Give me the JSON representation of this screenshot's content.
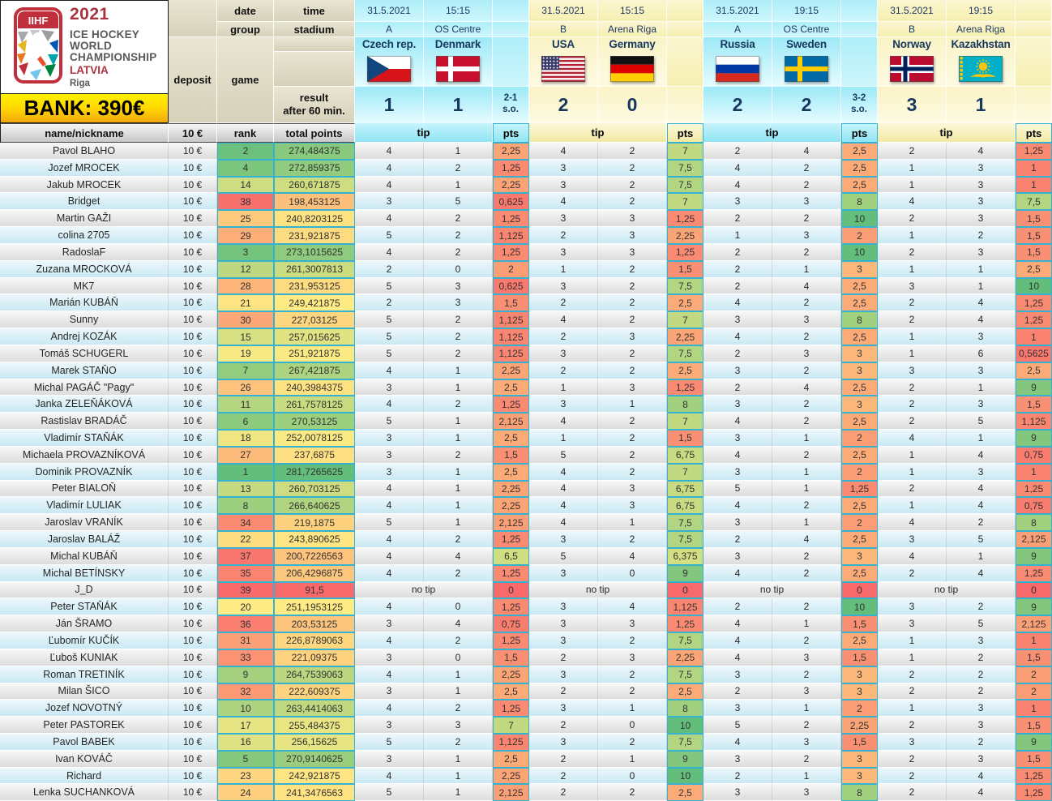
{
  "logo": {
    "org": "IIHF",
    "year": "2021",
    "title1": "ICE HOCKEY",
    "title2": "WORLD",
    "title3": "CHAMPIONSHIP",
    "country": "LATVIA",
    "city": "Riga"
  },
  "bank": {
    "label": "BANK: 390€"
  },
  "headers": {
    "date": "date",
    "time": "time",
    "group": "group",
    "stadium": "stadium",
    "deposit": "deposit",
    "game": "game",
    "result_line1": "result",
    "result_line2": "after 60 min.",
    "name": "name/nickname",
    "fee": "10 €",
    "rank": "rank",
    "total_points": "total points",
    "tip": "tip",
    "pts": "pts"
  },
  "labels": {
    "no_tip": "no tip"
  },
  "colors": {
    "scale_bad": "#f8696b",
    "scale_mid": "#ffeb84",
    "scale_good": "#63be7b",
    "scale_border": "#35b1d2",
    "group_a_accent": "#9de9f7",
    "group_b_accent": "#faf4c6",
    "bank_yellow": "#ffd800"
  },
  "matches": [
    {
      "date": "31.5.2021",
      "time": "15:15",
      "group": "A",
      "stadium": "OS Centre",
      "home": "Czech rep.",
      "away": "Denmark",
      "home_flag": "cz",
      "away_flag": "dk",
      "score_home": "1",
      "score_away": "1",
      "so_score": "2-1",
      "so_label": "s.o.",
      "theme": "A"
    },
    {
      "date": "31.5.2021",
      "time": "15:15",
      "group": "B",
      "stadium": "Arena Riga",
      "home": "USA",
      "away": "Germany",
      "home_flag": "us",
      "away_flag": "de",
      "score_home": "2",
      "score_away": "0",
      "theme": "B"
    },
    {
      "date": "31.5.2021",
      "time": "19:15",
      "group": "A",
      "stadium": "OS Centre",
      "home": "Russia",
      "away": "Sweden",
      "home_flag": "ru",
      "away_flag": "se",
      "score_home": "2",
      "score_away": "2",
      "so_score": "3-2",
      "so_label": "s.o.",
      "theme": "A"
    },
    {
      "date": "31.5.2021",
      "time": "19:15",
      "group": "B",
      "stadium": "Arena Riga",
      "home": "Norway",
      "away": "Kazakhstan",
      "home_flag": "no",
      "away_flag": "kz",
      "score_home": "3",
      "score_away": "1",
      "theme": "B"
    }
  ],
  "players": [
    {
      "name": "Pavol BLAHO",
      "deposit": "10 €",
      "rank": 2,
      "total": "274,484375",
      "tips": [
        [
          "4",
          "1"
        ],
        [
          "4",
          "2"
        ],
        [
          "2",
          "4"
        ],
        [
          "2",
          "4"
        ]
      ],
      "pts": [
        "2,25",
        "7",
        "2,5",
        "1,25"
      ]
    },
    {
      "name": "Jozef MROCEK",
      "deposit": "10 €",
      "rank": 4,
      "total": "272,859375",
      "tips": [
        [
          "4",
          "2"
        ],
        [
          "3",
          "2"
        ],
        [
          "4",
          "2"
        ],
        [
          "1",
          "3"
        ]
      ],
      "pts": [
        "1,25",
        "7,5",
        "2,5",
        "1"
      ]
    },
    {
      "name": "Jakub MROCEK",
      "deposit": "10 €",
      "rank": 14,
      "total": "260,671875",
      "tips": [
        [
          "4",
          "1"
        ],
        [
          "3",
          "2"
        ],
        [
          "4",
          "2"
        ],
        [
          "1",
          "3"
        ]
      ],
      "pts": [
        "2,25",
        "7,5",
        "2,5",
        "1"
      ]
    },
    {
      "name": "Bridget",
      "deposit": "10 €",
      "rank": 38,
      "total": "198,453125",
      "tips": [
        [
          "3",
          "5"
        ],
        [
          "4",
          "2"
        ],
        [
          "3",
          "3"
        ],
        [
          "4",
          "3"
        ]
      ],
      "pts": [
        "0,625",
        "7",
        "8",
        "7,5"
      ]
    },
    {
      "name": "Martin GAŽI",
      "deposit": "10 €",
      "rank": 25,
      "total": "240,8203125",
      "tips": [
        [
          "4",
          "2"
        ],
        [
          "3",
          "3"
        ],
        [
          "2",
          "2"
        ],
        [
          "2",
          "3"
        ]
      ],
      "pts": [
        "1,25",
        "1,25",
        "10",
        "1,5"
      ]
    },
    {
      "name": "colina 2705",
      "deposit": "10 €",
      "rank": 29,
      "total": "231,921875",
      "tips": [
        [
          "5",
          "2"
        ],
        [
          "2",
          "3"
        ],
        [
          "1",
          "3"
        ],
        [
          "1",
          "2"
        ]
      ],
      "pts": [
        "1,125",
        "2,25",
        "2",
        "1,5"
      ]
    },
    {
      "name": "RadoslaF",
      "deposit": "10 €",
      "rank": 3,
      "total": "273,1015625",
      "tips": [
        [
          "4",
          "2"
        ],
        [
          "3",
          "3"
        ],
        [
          "2",
          "2"
        ],
        [
          "2",
          "3"
        ]
      ],
      "pts": [
        "1,25",
        "1,25",
        "10",
        "1,5"
      ]
    },
    {
      "name": "Zuzana MROCKOVÁ",
      "deposit": "10 €",
      "rank": 12,
      "total": "261,3007813",
      "tips": [
        [
          "2",
          "0"
        ],
        [
          "1",
          "2"
        ],
        [
          "2",
          "1"
        ],
        [
          "1",
          "1"
        ]
      ],
      "pts": [
        "2",
        "1,5",
        "3",
        "2,5"
      ]
    },
    {
      "name": "MK7",
      "deposit": "10 €",
      "rank": 28,
      "total": "231,953125",
      "tips": [
        [
          "5",
          "3"
        ],
        [
          "3",
          "2"
        ],
        [
          "2",
          "4"
        ],
        [
          "3",
          "1"
        ]
      ],
      "pts": [
        "0,625",
        "7,5",
        "2,5",
        "10"
      ]
    },
    {
      "name": "Marián KUBÁŇ",
      "deposit": "10 €",
      "rank": 21,
      "total": "249,421875",
      "tips": [
        [
          "2",
          "3"
        ],
        [
          "2",
          "2"
        ],
        [
          "4",
          "2"
        ],
        [
          "2",
          "4"
        ]
      ],
      "pts": [
        "1,5",
        "2,5",
        "2,5",
        "1,25"
      ]
    },
    {
      "name": "Sunny",
      "deposit": "10 €",
      "rank": 30,
      "total": "227,03125",
      "tips": [
        [
          "5",
          "2"
        ],
        [
          "4",
          "2"
        ],
        [
          "3",
          "3"
        ],
        [
          "2",
          "4"
        ]
      ],
      "pts": [
        "1,125",
        "7",
        "8",
        "1,25"
      ]
    },
    {
      "name": "Andrej KOZÁK",
      "deposit": "10 €",
      "rank": 15,
      "total": "257,015625",
      "tips": [
        [
          "5",
          "2"
        ],
        [
          "2",
          "3"
        ],
        [
          "4",
          "2"
        ],
        [
          "1",
          "3"
        ]
      ],
      "pts": [
        "1,125",
        "2,25",
        "2,5",
        "1"
      ]
    },
    {
      "name": "Tomáš SCHUGERL",
      "deposit": "10 €",
      "rank": 19,
      "total": "251,921875",
      "tips": [
        [
          "5",
          "2"
        ],
        [
          "3",
          "2"
        ],
        [
          "2",
          "3"
        ],
        [
          "1",
          "6"
        ]
      ],
      "pts": [
        "1,125",
        "7,5",
        "3",
        "0,5625"
      ]
    },
    {
      "name": "Marek STAŇO",
      "deposit": "10 €",
      "rank": 7,
      "total": "267,421875",
      "tips": [
        [
          "4",
          "1"
        ],
        [
          "2",
          "2"
        ],
        [
          "3",
          "2"
        ],
        [
          "3",
          "3"
        ]
      ],
      "pts": [
        "2,25",
        "2,5",
        "3",
        "2,5"
      ]
    },
    {
      "name": "Michal PAGÁČ \"Pagy\"",
      "deposit": "10 €",
      "rank": 26,
      "total": "240,3984375",
      "tips": [
        [
          "3",
          "1"
        ],
        [
          "1",
          "3"
        ],
        [
          "2",
          "4"
        ],
        [
          "2",
          "1"
        ]
      ],
      "pts": [
        "2,5",
        "1,25",
        "2,5",
        "9"
      ]
    },
    {
      "name": "Janka ZELEŇÁKOVÁ",
      "deposit": "10 €",
      "rank": 11,
      "total": "261,7578125",
      "tips": [
        [
          "4",
          "2"
        ],
        [
          "3",
          "1"
        ],
        [
          "3",
          "2"
        ],
        [
          "2",
          "3"
        ]
      ],
      "pts": [
        "1,25",
        "8",
        "3",
        "1,5"
      ]
    },
    {
      "name": "Rastislav BRADÁČ",
      "deposit": "10 €",
      "rank": 6,
      "total": "270,53125",
      "tips": [
        [
          "5",
          "1"
        ],
        [
          "4",
          "2"
        ],
        [
          "4",
          "2"
        ],
        [
          "2",
          "5"
        ]
      ],
      "pts": [
        "2,125",
        "7",
        "2,5",
        "1,125"
      ]
    },
    {
      "name": "Vladimír STAŇÁK",
      "deposit": "10 €",
      "rank": 18,
      "total": "252,0078125",
      "tips": [
        [
          "3",
          "1"
        ],
        [
          "1",
          "2"
        ],
        [
          "3",
          "1"
        ],
        [
          "4",
          "1"
        ]
      ],
      "pts": [
        "2,5",
        "1,5",
        "2",
        "9"
      ]
    },
    {
      "name": "Michaela PROVAZNÍKOVÁ",
      "deposit": "10 €",
      "rank": 27,
      "total": "237,6875",
      "tips": [
        [
          "3",
          "2"
        ],
        [
          "5",
          "2"
        ],
        [
          "4",
          "2"
        ],
        [
          "1",
          "4"
        ]
      ],
      "pts": [
        "1,5",
        "6,75",
        "2,5",
        "0,75"
      ]
    },
    {
      "name": "Dominik PROVAZNÍK",
      "deposit": "10 €",
      "rank": 1,
      "total": "281,7265625",
      "tips": [
        [
          "3",
          "1"
        ],
        [
          "4",
          "2"
        ],
        [
          "3",
          "1"
        ],
        [
          "1",
          "3"
        ]
      ],
      "pts": [
        "2,5",
        "7",
        "2",
        "1"
      ]
    },
    {
      "name": "Peter BIALOŇ",
      "deposit": "10 €",
      "rank": 13,
      "total": "260,703125",
      "tips": [
        [
          "4",
          "1"
        ],
        [
          "4",
          "3"
        ],
        [
          "5",
          "1"
        ],
        [
          "2",
          "4"
        ]
      ],
      "pts": [
        "2,25",
        "6,75",
        "1,25",
        "1,25"
      ]
    },
    {
      "name": "Vladimír LULIAK",
      "deposit": "10 €",
      "rank": 8,
      "total": "266,640625",
      "tips": [
        [
          "4",
          "1"
        ],
        [
          "4",
          "3"
        ],
        [
          "4",
          "2"
        ],
        [
          "1",
          "4"
        ]
      ],
      "pts": [
        "2,25",
        "6,75",
        "2,5",
        "0,75"
      ]
    },
    {
      "name": "Jaroslav VRANÍK",
      "deposit": "10 €",
      "rank": 34,
      "total": "219,1875",
      "tips": [
        [
          "5",
          "1"
        ],
        [
          "4",
          "1"
        ],
        [
          "3",
          "1"
        ],
        [
          "4",
          "2"
        ]
      ],
      "pts": [
        "2,125",
        "7,5",
        "2",
        "8"
      ]
    },
    {
      "name": "Jaroslav BALÁŽ",
      "deposit": "10 €",
      "rank": 22,
      "total": "243,890625",
      "tips": [
        [
          "4",
          "2"
        ],
        [
          "3",
          "2"
        ],
        [
          "2",
          "4"
        ],
        [
          "3",
          "5"
        ]
      ],
      "pts": [
        "1,25",
        "7,5",
        "2,5",
        "2,125"
      ]
    },
    {
      "name": "Michal KUBÁŇ",
      "deposit": "10 €",
      "rank": 37,
      "total": "200,7226563",
      "tips": [
        [
          "4",
          "4"
        ],
        [
          "5",
          "4"
        ],
        [
          "3",
          "2"
        ],
        [
          "4",
          "1"
        ]
      ],
      "pts": [
        "6,5",
        "6,375",
        "3",
        "9"
      ]
    },
    {
      "name": "Michal BETÍNSKY",
      "deposit": "10 €",
      "rank": 35,
      "total": "206,4296875",
      "tips": [
        [
          "4",
          "2"
        ],
        [
          "3",
          "0"
        ],
        [
          "4",
          "2"
        ],
        [
          "2",
          "4"
        ]
      ],
      "pts": [
        "1,25",
        "9",
        "2,5",
        "1,25"
      ]
    },
    {
      "name": "J_D",
      "deposit": "10 €",
      "rank": 39,
      "total": "91,5",
      "tips": [
        null,
        null,
        null,
        null
      ],
      "pts": [
        "0",
        "0",
        "0",
        "0"
      ]
    },
    {
      "name": "Peter STAŇÁK",
      "deposit": "10 €",
      "rank": 20,
      "total": "251,1953125",
      "tips": [
        [
          "4",
          "0"
        ],
        [
          "3",
          "4"
        ],
        [
          "2",
          "2"
        ],
        [
          "3",
          "2"
        ]
      ],
      "pts": [
        "1,25",
        "1,125",
        "10",
        "9"
      ]
    },
    {
      "name": "Ján ŠRAMO",
      "deposit": "10 €",
      "rank": 36,
      "total": "203,53125",
      "tips": [
        [
          "3",
          "4"
        ],
        [
          "3",
          "3"
        ],
        [
          "4",
          "1"
        ],
        [
          "3",
          "5"
        ]
      ],
      "pts": [
        "0,75",
        "1,25",
        "1,5",
        "2,125"
      ]
    },
    {
      "name": "Ľubomír KUČÍK",
      "deposit": "10 €",
      "rank": 31,
      "total": "226,8789063",
      "tips": [
        [
          "4",
          "2"
        ],
        [
          "3",
          "2"
        ],
        [
          "4",
          "2"
        ],
        [
          "1",
          "3"
        ]
      ],
      "pts": [
        "1,25",
        "7,5",
        "2,5",
        "1"
      ]
    },
    {
      "name": "Ľuboš KUNIAK",
      "deposit": "10 €",
      "rank": 33,
      "total": "221,09375",
      "tips": [
        [
          "3",
          "0"
        ],
        [
          "2",
          "3"
        ],
        [
          "4",
          "3"
        ],
        [
          "1",
          "2"
        ]
      ],
      "pts": [
        "1,5",
        "2,25",
        "1,5",
        "1,5"
      ]
    },
    {
      "name": "Roman TRETINÍK",
      "deposit": "10 €",
      "rank": 9,
      "total": "264,7539063",
      "tips": [
        [
          "4",
          "1"
        ],
        [
          "3",
          "2"
        ],
        [
          "3",
          "2"
        ],
        [
          "2",
          "2"
        ]
      ],
      "pts": [
        "2,25",
        "7,5",
        "3",
        "2"
      ]
    },
    {
      "name": "Milan ŠICO",
      "deposit": "10 €",
      "rank": 32,
      "total": "222,609375",
      "tips": [
        [
          "3",
          "1"
        ],
        [
          "2",
          "2"
        ],
        [
          "2",
          "3"
        ],
        [
          "2",
          "2"
        ]
      ],
      "pts": [
        "2,5",
        "2,5",
        "3",
        "2"
      ]
    },
    {
      "name": "Jozef NOVOTNÝ",
      "deposit": "10 €",
      "rank": 10,
      "total": "263,4414063",
      "tips": [
        [
          "4",
          "2"
        ],
        [
          "3",
          "1"
        ],
        [
          "3",
          "1"
        ],
        [
          "1",
          "3"
        ]
      ],
      "pts": [
        "1,25",
        "8",
        "2",
        "1"
      ]
    },
    {
      "name": "Peter PASTOREK",
      "deposit": "10 €",
      "rank": 17,
      "total": "255,484375",
      "tips": [
        [
          "3",
          "3"
        ],
        [
          "2",
          "0"
        ],
        [
          "5",
          "2"
        ],
        [
          "2",
          "3"
        ]
      ],
      "pts": [
        "7",
        "10",
        "2,25",
        "1,5"
      ]
    },
    {
      "name": "Pavol BABEK",
      "deposit": "10 €",
      "rank": 16,
      "total": "256,15625",
      "tips": [
        [
          "5",
          "2"
        ],
        [
          "3",
          "2"
        ],
        [
          "4",
          "3"
        ],
        [
          "3",
          "2"
        ]
      ],
      "pts": [
        "1,125",
        "7,5",
        "1,5",
        "9"
      ]
    },
    {
      "name": "Ivan KOVÁČ",
      "deposit": "10 €",
      "rank": 5,
      "total": "270,9140625",
      "tips": [
        [
          "3",
          "1"
        ],
        [
          "2",
          "1"
        ],
        [
          "3",
          "2"
        ],
        [
          "2",
          "3"
        ]
      ],
      "pts": [
        "2,5",
        "9",
        "3",
        "1,5"
      ]
    },
    {
      "name": "Richard",
      "deposit": "10 €",
      "rank": 23,
      "total": "242,921875",
      "tips": [
        [
          "4",
          "1"
        ],
        [
          "2",
          "0"
        ],
        [
          "2",
          "1"
        ],
        [
          "2",
          "4"
        ]
      ],
      "pts": [
        "2,25",
        "10",
        "3",
        "1,25"
      ]
    },
    {
      "name": "Lenka SUCHANKOVÁ",
      "deposit": "10 €",
      "rank": 24,
      "total": "241,3476563",
      "tips": [
        [
          "5",
          "1"
        ],
        [
          "2",
          "2"
        ],
        [
          "3",
          "3"
        ],
        [
          "2",
          "4"
        ]
      ],
      "pts": [
        "2,125",
        "2,5",
        "8",
        "1,25"
      ]
    }
  ]
}
